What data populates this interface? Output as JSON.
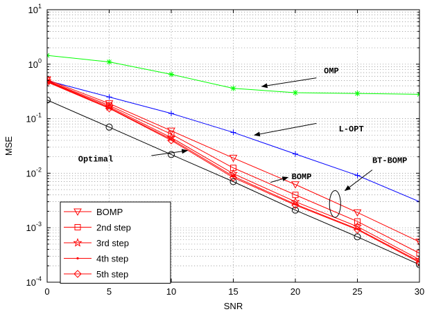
{
  "chart_data": {
    "type": "line",
    "xlabel": "SNR",
    "ylabel": "MSE",
    "xlim": [
      0,
      30
    ],
    "ylim": [
      0.0001,
      10
    ],
    "yscale": "log",
    "xticks": [
      0,
      5,
      10,
      15,
      20,
      25,
      30
    ],
    "xtick_labels": [
      "0",
      "5",
      "10",
      "15",
      "20",
      "25",
      "30"
    ],
    "ytick_exponents": [
      -4,
      -3,
      -2,
      -1,
      0,
      1
    ],
    "grid": true,
    "legend_position": "bottom-left",
    "series": [
      {
        "name": "OMP",
        "legend": false,
        "color": "#00ff00",
        "marker": "asterisk",
        "x": [
          0,
          5,
          10,
          15,
          20,
          25,
          30
        ],
        "y": [
          1.45,
          1.1,
          0.65,
          0.36,
          0.3,
          0.29,
          0.28
        ]
      },
      {
        "name": "L-OPT",
        "legend": false,
        "color": "#0000ff",
        "marker": "plus",
        "x": [
          0,
          5,
          10,
          15,
          20,
          25,
          30
        ],
        "y": [
          0.5,
          0.25,
          0.125,
          0.056,
          0.0225,
          0.0091,
          0.003
        ]
      },
      {
        "name": "Optimal",
        "legend": false,
        "color": "#000000",
        "marker": "circle",
        "x": [
          0,
          5,
          10,
          15,
          20,
          25,
          30
        ],
        "y": [
          0.22,
          0.07,
          0.022,
          0.007,
          0.0021,
          0.00068,
          0.00021
        ]
      },
      {
        "name": "BOMP",
        "legend": true,
        "color": "#ff0000",
        "marker": "triangle-down",
        "x": [
          0,
          5,
          10,
          15,
          20,
          25,
          30
        ],
        "y": [
          0.52,
          0.19,
          0.06,
          0.019,
          0.0062,
          0.0019,
          0.00055
        ]
      },
      {
        "name": "2nd step",
        "legend": true,
        "color": "#ff0000",
        "marker": "square",
        "x": [
          0,
          5,
          10,
          15,
          20,
          25,
          30
        ],
        "y": [
          0.5,
          0.175,
          0.052,
          0.0125,
          0.004,
          0.0013,
          0.00034
        ]
      },
      {
        "name": "3rd step",
        "legend": true,
        "color": "#ff0000",
        "marker": "star",
        "x": [
          0,
          5,
          10,
          15,
          20,
          25,
          30
        ],
        "y": [
          0.49,
          0.165,
          0.045,
          0.0098,
          0.003,
          0.00105,
          0.00026
        ]
      },
      {
        "name": "4th step",
        "legend": true,
        "color": "#ff0000",
        "marker": "point",
        "x": [
          0,
          5,
          10,
          15,
          20,
          25,
          30
        ],
        "y": [
          0.48,
          0.158,
          0.042,
          0.0088,
          0.0027,
          0.00095,
          0.00024
        ]
      },
      {
        "name": "5th step",
        "legend": true,
        "color": "#ff0000",
        "marker": "diamond",
        "x": [
          0,
          5,
          10,
          15,
          20,
          25,
          30
        ],
        "y": [
          0.47,
          0.155,
          0.04,
          0.0083,
          0.0026,
          0.00092,
          0.00023
        ]
      }
    ],
    "annotations": [
      {
        "id": "omp",
        "text": "OMP",
        "text_at": [
          22.3,
          0.68
        ],
        "arrow_from": [
          21.7,
          0.56
        ],
        "arrow_to": [
          17.3,
          0.39
        ]
      },
      {
        "id": "lopt",
        "text": "L-OPT",
        "text_at": [
          23.5,
          0.058
        ],
        "arrow_from": [
          21.7,
          0.082
        ],
        "arrow_to": [
          16.7,
          0.05
        ]
      },
      {
        "id": "optimal",
        "text": "Optimal",
        "text_at": [
          2.5,
          0.0165
        ],
        "arrow_from": [
          8.4,
          0.021
        ],
        "arrow_to": [
          11.3,
          0.026
        ]
      },
      {
        "id": "bomp",
        "text": "BOMP",
        "text_at": [
          19.7,
          0.0078
        ],
        "arrow_from": [
          18.0,
          0.0068
        ],
        "arrow_to": [
          19.4,
          0.0084
        ]
      },
      {
        "id": "bt-bomp",
        "text": "BT-BOMP",
        "text_at": [
          26.2,
          0.0155
        ],
        "arrow_from": [
          26.2,
          0.0115
        ],
        "arrow_to": [
          24.0,
          0.0048
        ]
      }
    ],
    "ellipse": {
      "cx": 23.2,
      "cy": 0.0027,
      "rx": 0.45,
      "ry_top": 0.0048,
      "ry_bottom": 0.00155
    }
  }
}
